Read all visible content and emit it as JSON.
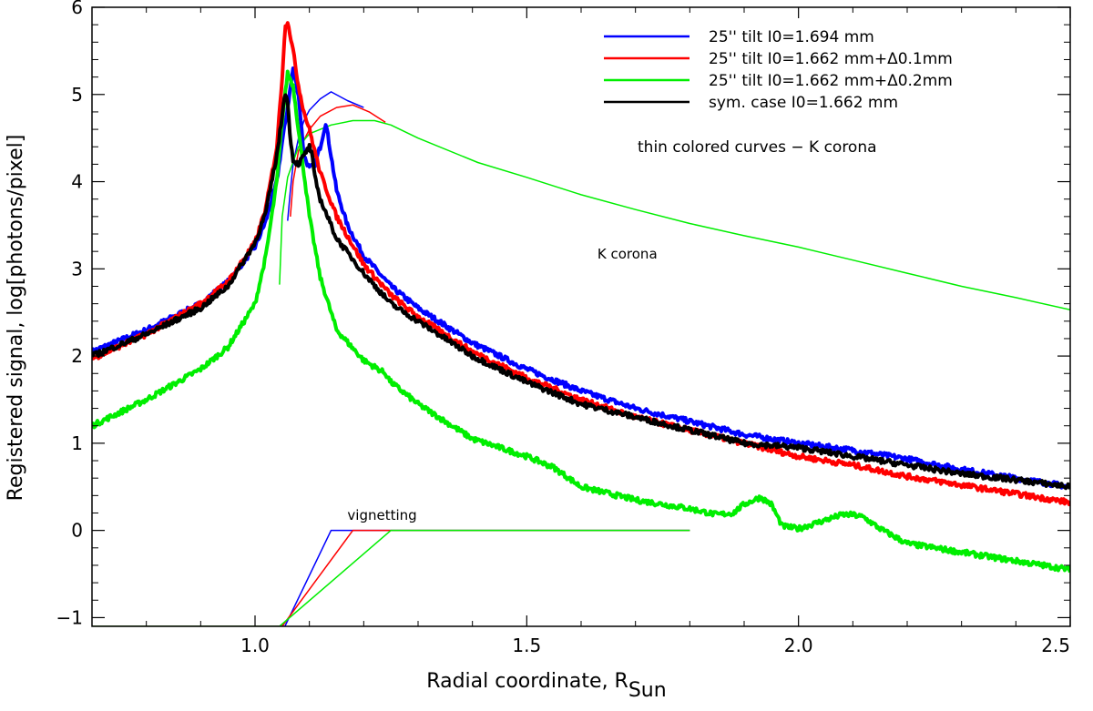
{
  "chart_data": {
    "type": "line",
    "xlabel_main": "Radial coordinate, R",
    "xlabel_sub": "Sun",
    "ylabel": "Registered signal, log[photons/pixel]",
    "xlim": [
      0.7,
      2.5
    ],
    "ylim": [
      -1.1,
      6.0
    ],
    "x_ticks": [
      1.0,
      1.5,
      2.0,
      2.5
    ],
    "x_tick_labels": [
      "1.0",
      "1.5",
      "2.0",
      "2.5"
    ],
    "y_ticks": [
      -1,
      0,
      1,
      2,
      3,
      4,
      5,
      6
    ],
    "y_tick_labels": [
      "−1",
      "0",
      "1",
      "2",
      "3",
      "4",
      "5",
      "6"
    ],
    "legend_position": "top-right",
    "legend_note": "thin colored curves − K corona",
    "annotations": [
      {
        "text": "K corona",
        "x": 1.63,
        "y": 3.12
      },
      {
        "text": "vignetting",
        "x": 1.17,
        "y": 0.12
      }
    ],
    "series": [
      {
        "name": "25'' tilt I0=1.694 mm",
        "color": "#0000ff",
        "kind": "signal",
        "legend": true,
        "x": [
          0.7,
          0.8,
          0.9,
          0.95,
          1.0,
          1.02,
          1.04,
          1.05,
          1.06,
          1.07,
          1.08,
          1.09,
          1.1,
          1.11,
          1.12,
          1.13,
          1.14,
          1.15,
          1.17,
          1.2,
          1.25,
          1.3,
          1.4,
          1.5,
          1.6,
          1.7,
          1.8,
          1.9,
          2.0,
          2.1,
          2.2,
          2.3,
          2.4,
          2.5
        ],
        "values": [
          2.05,
          2.3,
          2.6,
          2.85,
          3.25,
          3.55,
          4.0,
          4.45,
          4.85,
          5.3,
          5.0,
          4.3,
          4.15,
          4.2,
          4.4,
          4.68,
          4.3,
          3.9,
          3.5,
          3.15,
          2.8,
          2.55,
          2.15,
          1.85,
          1.6,
          1.4,
          1.25,
          1.1,
          1.0,
          0.92,
          0.82,
          0.7,
          0.6,
          0.5
        ]
      },
      {
        "name": "25'' tilt I0=1.662 mm+Δ0.1mm",
        "color": "#ff0000",
        "kind": "signal",
        "legend": true,
        "x": [
          0.7,
          0.8,
          0.9,
          0.95,
          1.0,
          1.02,
          1.04,
          1.05,
          1.055,
          1.06,
          1.07,
          1.08,
          1.09,
          1.1,
          1.12,
          1.15,
          1.2,
          1.25,
          1.3,
          1.4,
          1.5,
          1.6,
          1.7,
          1.8,
          1.9,
          2.0,
          2.1,
          2.2,
          2.3,
          2.4,
          2.5
        ],
        "values": [
          1.97,
          2.25,
          2.6,
          2.85,
          3.3,
          3.7,
          4.4,
          5.2,
          5.75,
          5.85,
          5.5,
          5.1,
          4.8,
          4.6,
          4.1,
          3.6,
          3.05,
          2.7,
          2.45,
          2.05,
          1.75,
          1.5,
          1.3,
          1.15,
          1.0,
          0.85,
          0.75,
          0.62,
          0.52,
          0.42,
          0.32
        ]
      },
      {
        "name": "25'' tilt I0=1.662 mm+Δ0.2mm",
        "color": "#00ee00",
        "kind": "signal",
        "legend": true,
        "x": [
          0.7,
          0.8,
          0.9,
          0.95,
          1.0,
          1.02,
          1.04,
          1.05,
          1.06,
          1.07,
          1.08,
          1.09,
          1.1,
          1.12,
          1.15,
          1.2,
          1.24,
          1.25,
          1.3,
          1.4,
          1.5,
          1.55,
          1.6,
          1.7,
          1.8,
          1.85,
          1.88,
          1.9,
          1.93,
          1.95,
          1.97,
          2.0,
          2.05,
          2.08,
          2.1,
          2.12,
          2.15,
          2.2,
          2.3,
          2.4,
          2.5
        ],
        "values": [
          1.2,
          1.5,
          1.85,
          2.1,
          2.6,
          3.15,
          4.0,
          4.7,
          5.25,
          5.1,
          4.6,
          4.1,
          3.6,
          2.9,
          2.3,
          1.95,
          1.8,
          1.7,
          1.45,
          1.05,
          0.85,
          0.72,
          0.5,
          0.35,
          0.25,
          0.18,
          0.2,
          0.3,
          0.38,
          0.3,
          0.05,
          0.02,
          0.12,
          0.18,
          0.18,
          0.15,
          0.02,
          -0.15,
          -0.25,
          -0.35,
          -0.45
        ]
      },
      {
        "name": "sym. case I0=1.662 mm",
        "color": "#000000",
        "kind": "signal",
        "legend": true,
        "x": [
          0.7,
          0.8,
          0.9,
          0.95,
          1.0,
          1.02,
          1.04,
          1.05,
          1.055,
          1.06,
          1.065,
          1.07,
          1.08,
          1.09,
          1.1,
          1.105,
          1.11,
          1.12,
          1.15,
          1.2,
          1.25,
          1.3,
          1.4,
          1.5,
          1.6,
          1.7,
          1.8,
          1.9,
          2.0,
          2.1,
          2.2,
          2.3,
          2.4,
          2.5
        ],
        "values": [
          2.0,
          2.25,
          2.55,
          2.8,
          3.3,
          3.65,
          4.3,
          4.75,
          5.05,
          4.9,
          4.5,
          4.25,
          4.2,
          4.3,
          4.4,
          4.3,
          4.05,
          3.8,
          3.35,
          2.95,
          2.6,
          2.4,
          2.0,
          1.7,
          1.45,
          1.3,
          1.15,
          1.0,
          0.95,
          0.85,
          0.75,
          0.65,
          0.58,
          0.5
        ]
      },
      {
        "name": "K corona (blue)",
        "color": "#0000ff",
        "kind": "k-corona",
        "legend": false,
        "x": [
          1.06,
          1.065,
          1.07,
          1.08,
          1.09,
          1.1,
          1.12,
          1.14,
          1.17,
          1.2
        ],
        "values": [
          3.55,
          3.9,
          4.2,
          4.5,
          4.7,
          4.82,
          4.95,
          5.03,
          4.93,
          4.85
        ]
      },
      {
        "name": "K corona (red)",
        "color": "#ff0000",
        "kind": "k-corona",
        "legend": false,
        "x": [
          1.065,
          1.07,
          1.08,
          1.1,
          1.12,
          1.15,
          1.18,
          1.21,
          1.24
        ],
        "values": [
          3.6,
          4.0,
          4.35,
          4.6,
          4.75,
          4.85,
          4.88,
          4.8,
          4.68
        ]
      },
      {
        "name": "K corona (green)",
        "color": "#00ee00",
        "kind": "k-corona",
        "legend": false,
        "x": [
          1.045,
          1.05,
          1.06,
          1.08,
          1.1,
          1.14,
          1.18,
          1.22,
          1.25,
          1.3,
          1.41,
          1.5,
          1.6,
          1.7,
          1.8,
          1.9,
          2.0,
          2.1,
          2.2,
          2.3,
          2.4,
          2.5
        ],
        "values": [
          2.82,
          3.6,
          4.05,
          4.4,
          4.55,
          4.65,
          4.7,
          4.7,
          4.65,
          4.5,
          4.22,
          4.05,
          3.85,
          3.68,
          3.52,
          3.38,
          3.25,
          3.1,
          2.95,
          2.8,
          2.67,
          2.53
        ]
      },
      {
        "name": "vignetting (blue)",
        "color": "#0000ff",
        "kind": "vignetting",
        "legend": false,
        "x": [
          0.7,
          1.055,
          1.14,
          1.8
        ],
        "values": [
          -1.1,
          -1.1,
          0.0,
          0.0
        ]
      },
      {
        "name": "vignetting (red)",
        "color": "#ff0000",
        "kind": "vignetting",
        "legend": false,
        "x": [
          0.7,
          1.05,
          1.18,
          1.8
        ],
        "values": [
          -1.1,
          -1.1,
          0.0,
          0.0
        ]
      },
      {
        "name": "vignetting (green)",
        "color": "#00ee00",
        "kind": "vignetting",
        "legend": false,
        "x": [
          0.7,
          1.045,
          1.25,
          1.8
        ],
        "values": [
          -1.1,
          -1.1,
          0.0,
          0.0
        ]
      }
    ]
  }
}
